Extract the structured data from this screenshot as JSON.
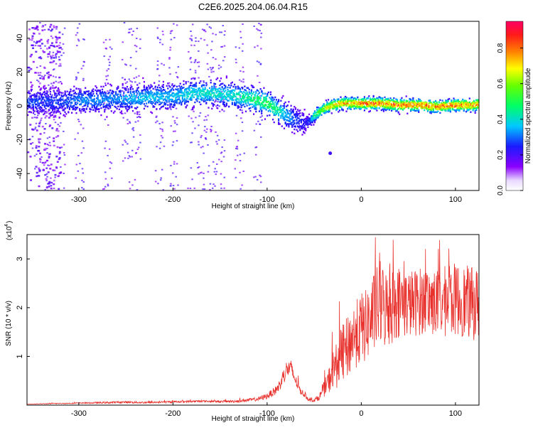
{
  "title": "C2E6.2025.204.06.04.R15",
  "chart_data": [
    {
      "type": "heatmap",
      "xlabel": "Height of straight line (km)",
      "ylabel": "Frequency (Hz)",
      "xlim": [
        -355,
        125
      ],
      "ylim": [
        -50,
        50
      ],
      "xticks": [
        -300,
        -200,
        -100,
        0,
        100
      ],
      "yticks": [
        -40,
        -20,
        0,
        20,
        40
      ],
      "colorbar": {
        "label": "Normalized spectral amplitude",
        "range": [
          0.0,
          0.95
        ],
        "ticks": [
          0.0,
          0.2,
          0.4,
          0.6,
          0.8
        ]
      },
      "ridge": {
        "x": [
          -345,
          -320,
          -300,
          -280,
          -260,
          -240,
          -220,
          -200,
          -180,
          -160,
          -140,
          -120,
          -110,
          -100,
          -90,
          -80,
          -70,
          -60,
          -55,
          -50,
          -40,
          -30,
          -20,
          -10,
          0,
          20,
          40,
          60,
          80,
          100,
          120,
          125
        ],
        "frequency": [
          3,
          3,
          4,
          4,
          5,
          5,
          6,
          6,
          8,
          8,
          7,
          5,
          4,
          2,
          -2,
          -5,
          -8,
          -10,
          -8,
          -5,
          -1,
          1,
          2,
          2,
          2,
          2,
          1,
          1,
          0,
          1,
          1,
          2
        ],
        "amplitude": [
          0.3,
          0.3,
          0.35,
          0.35,
          0.35,
          0.4,
          0.4,
          0.4,
          0.45,
          0.45,
          0.45,
          0.5,
          0.55,
          0.55,
          0.5,
          0.4,
          0.3,
          0.25,
          0.3,
          0.55,
          0.7,
          0.8,
          0.85,
          0.85,
          0.9,
          0.9,
          0.9,
          0.9,
          0.88,
          0.88,
          0.85,
          0.85
        ]
      },
      "grid": false
    },
    {
      "type": "line",
      "xlabel": "Height of straight line (km)",
      "ylabel": "SNR (10 * v/v)",
      "multiplier_label": "(x10",
      "multiplier_exp": "4",
      "xlim": [
        -355,
        125
      ],
      "ylim": [
        0,
        3.5
      ],
      "xticks": [
        -300,
        -200,
        -100,
        0,
        100
      ],
      "yticks": [
        1,
        2,
        3
      ],
      "color": "#e8312c",
      "series": [
        {
          "x": [
            -355,
            -330,
            -300,
            -270,
            -250,
            -230,
            -210,
            -190,
            -170,
            -150,
            -130,
            -110,
            -100,
            -90,
            -85,
            -80,
            -75,
            -70,
            -65,
            -60,
            -55,
            -50,
            -45,
            -40,
            -35,
            -30,
            -25,
            -20,
            -15,
            -10,
            -5,
            0,
            5,
            10,
            15,
            20,
            25,
            30,
            35,
            40,
            50,
            60,
            70,
            80,
            90,
            100,
            110,
            120,
            125
          ],
          "y": [
            0.02,
            0.03,
            0.04,
            0.05,
            0.06,
            0.05,
            0.06,
            0.07,
            0.08,
            0.07,
            0.08,
            0.12,
            0.18,
            0.3,
            0.45,
            0.7,
            0.75,
            0.5,
            0.3,
            0.2,
            0.1,
            0.1,
            0.15,
            0.3,
            0.45,
            0.7,
            0.8,
            1.0,
            1.1,
            1.3,
            1.4,
            1.5,
            1.55,
            1.7,
            1.85,
            2.0,
            1.9,
            1.9,
            2.0,
            2.05,
            2.0,
            2.05,
            2.1,
            2.0,
            2.05,
            2.1,
            2.05,
            2.0,
            2.0
          ],
          "noise": [
            0.0,
            0.01,
            0.01,
            0.02,
            0.02,
            0.02,
            0.02,
            0.02,
            0.02,
            0.02,
            0.03,
            0.04,
            0.06,
            0.1,
            0.14,
            0.18,
            0.18,
            0.12,
            0.08,
            0.05,
            0.04,
            0.04,
            0.06,
            0.15,
            0.25,
            0.4,
            0.5,
            0.6,
            0.65,
            0.7,
            0.7,
            0.75,
            0.75,
            0.8,
            0.85,
            0.9,
            0.85,
            0.8,
            0.8,
            0.75,
            0.7,
            0.7,
            0.7,
            0.7,
            0.75,
            0.75,
            0.75,
            0.75,
            0.75
          ]
        }
      ],
      "grid": false
    }
  ]
}
